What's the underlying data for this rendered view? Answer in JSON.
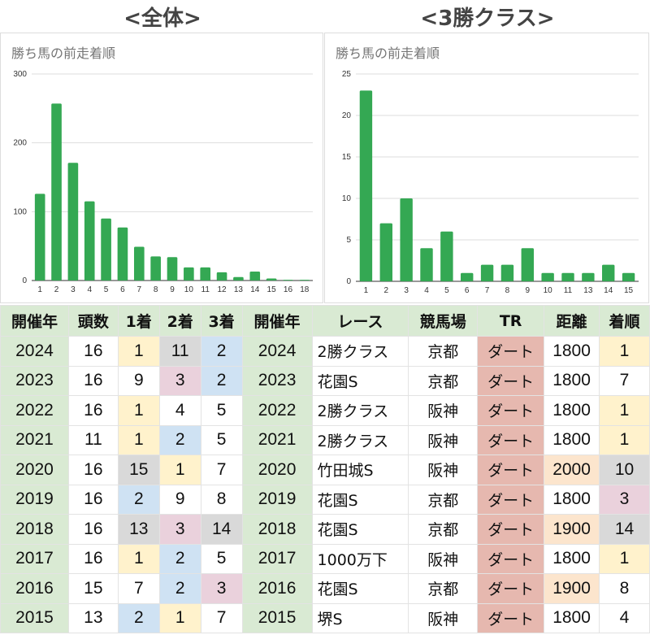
{
  "headings": {
    "all": "<全体>",
    "class3": "<3勝クラス>"
  },
  "colors": {
    "bar": "#34a853",
    "y": "#fff2cc",
    "b": "#cfe2f3",
    "p": "#ead1dc",
    "g": "#d9d9d9",
    "r": "#e6b8af",
    "o": "#fce5cd",
    "header": "#d9ead3"
  },
  "chart_data": [
    {
      "type": "bar",
      "title": "勝ち馬の前走着順",
      "xlabel": "",
      "ylabel": "",
      "ylim": [
        0,
        300
      ],
      "yticks": [
        0,
        100,
        200,
        300
      ],
      "grid": true,
      "categories": [
        "1",
        "2",
        "3",
        "4",
        "5",
        "6",
        "7",
        "8",
        "9",
        "10",
        "11",
        "12",
        "13",
        "14",
        "15",
        "16",
        "18"
      ],
      "values": [
        126,
        257,
        171,
        115,
        90,
        77,
        49,
        35,
        34,
        19,
        19,
        12,
        5,
        13,
        3,
        1,
        1
      ]
    },
    {
      "type": "bar",
      "title": "勝ち馬の前走着順",
      "xlabel": "",
      "ylabel": "",
      "ylim": [
        0,
        25
      ],
      "yticks": [
        0,
        5,
        10,
        15,
        20,
        25
      ],
      "grid": true,
      "categories": [
        "1",
        "2",
        "3",
        "4",
        "5",
        "6",
        "7",
        "8",
        "9",
        "10",
        "11",
        "13",
        "14",
        "15"
      ],
      "values": [
        23,
        7,
        10,
        4,
        6,
        1,
        2,
        2,
        4,
        1,
        1,
        1,
        2,
        1
      ]
    }
  ],
  "table": {
    "headers": [
      "開催年",
      "頭数",
      "1着",
      "2着",
      "3着",
      "開催年",
      "レース",
      "競馬場",
      "TR",
      "距離",
      "着順"
    ],
    "rows": [
      {
        "cells": [
          "2024",
          "16",
          "1",
          "11",
          "2",
          "2024",
          "2勝クラス",
          "京都",
          "ダート",
          "1800",
          "1"
        ],
        "colors": [
          "",
          "",
          "y",
          "g",
          "b",
          "",
          "",
          "",
          "r",
          "",
          "y"
        ]
      },
      {
        "cells": [
          "2023",
          "16",
          "9",
          "3",
          "2",
          "2023",
          "花園S",
          "京都",
          "ダート",
          "1800",
          "7"
        ],
        "colors": [
          "",
          "",
          "",
          "p",
          "b",
          "",
          "",
          "",
          "r",
          "",
          ""
        ]
      },
      {
        "cells": [
          "2022",
          "16",
          "1",
          "4",
          "5",
          "2022",
          "2勝クラス",
          "阪神",
          "ダート",
          "1800",
          "1"
        ],
        "colors": [
          "",
          "",
          "y",
          "",
          "",
          "",
          "",
          "",
          "r",
          "",
          "y"
        ]
      },
      {
        "cells": [
          "2021",
          "11",
          "1",
          "2",
          "5",
          "2021",
          "2勝クラス",
          "阪神",
          "ダート",
          "1800",
          "1"
        ],
        "colors": [
          "",
          "",
          "y",
          "b",
          "",
          "",
          "",
          "",
          "r",
          "",
          "y"
        ]
      },
      {
        "cells": [
          "2020",
          "16",
          "15",
          "1",
          "7",
          "2020",
          "竹田城S",
          "阪神",
          "ダート",
          "2000",
          "10"
        ],
        "colors": [
          "",
          "",
          "g",
          "y",
          "",
          "",
          "",
          "",
          "r",
          "o",
          "g"
        ]
      },
      {
        "cells": [
          "2019",
          "16",
          "2",
          "9",
          "8",
          "2019",
          "花園S",
          "京都",
          "ダート",
          "1800",
          "3"
        ],
        "colors": [
          "",
          "",
          "b",
          "",
          "",
          "",
          "",
          "",
          "r",
          "",
          "p"
        ]
      },
      {
        "cells": [
          "2018",
          "16",
          "13",
          "3",
          "14",
          "2018",
          "花園S",
          "京都",
          "ダート",
          "1900",
          "14"
        ],
        "colors": [
          "",
          "",
          "g",
          "p",
          "g",
          "",
          "",
          "",
          "r",
          "o",
          "g"
        ]
      },
      {
        "cells": [
          "2017",
          "16",
          "1",
          "2",
          "5",
          "2017",
          "1000万下",
          "阪神",
          "ダート",
          "1800",
          "1"
        ],
        "colors": [
          "",
          "",
          "y",
          "b",
          "",
          "",
          "",
          "",
          "r",
          "",
          "y"
        ]
      },
      {
        "cells": [
          "2016",
          "15",
          "7",
          "2",
          "3",
          "2016",
          "花園S",
          "京都",
          "ダート",
          "1900",
          "8"
        ],
        "colors": [
          "",
          "",
          "",
          "b",
          "p",
          "",
          "",
          "",
          "r",
          "o",
          ""
        ]
      },
      {
        "cells": [
          "2015",
          "13",
          "2",
          "1",
          "7",
          "2015",
          "堺S",
          "阪神",
          "ダート",
          "1800",
          "4"
        ],
        "colors": [
          "",
          "",
          "b",
          "y",
          "",
          "",
          "",
          "",
          "r",
          "",
          ""
        ]
      }
    ]
  }
}
